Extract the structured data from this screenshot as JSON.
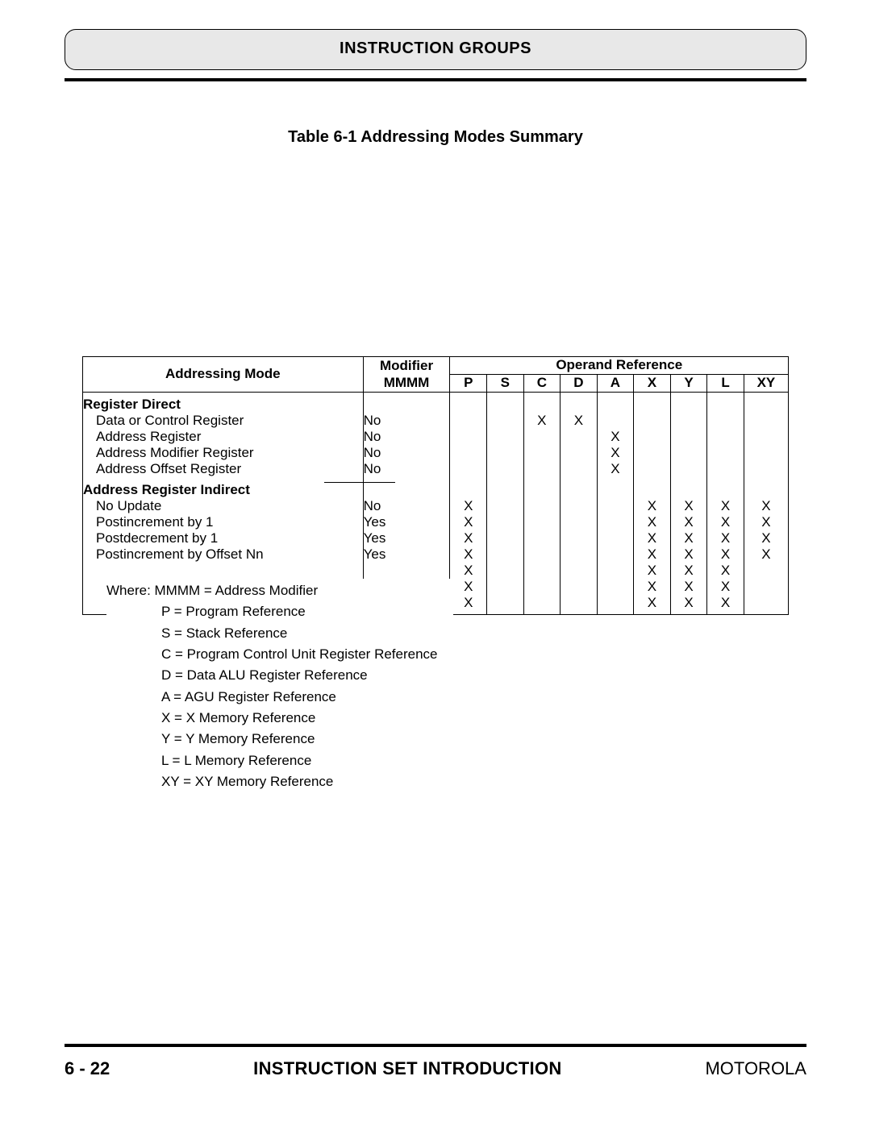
{
  "header": {
    "title": "INSTRUCTION GROUPS"
  },
  "caption": "Table 6-1 Addressing Modes Summary",
  "table": {
    "headers": {
      "mode": "Addressing Mode",
      "modifier_line1": "Modifier",
      "modifier_line2": "MMMM",
      "operand_reference": "Operand Reference",
      "cols": [
        "P",
        "S",
        "C",
        "D",
        "A",
        "X",
        "Y",
        "L",
        "XY"
      ]
    },
    "sections": [
      {
        "title": "Register Direct",
        "rows": [
          {
            "label": "Data or Control Register",
            "mod": "No",
            "marks": {
              "C": "X",
              "D": "X"
            }
          },
          {
            "label": "Address Register",
            "mod": "No",
            "marks": {
              "A": "X"
            }
          },
          {
            "label": "Address Modifier Register",
            "mod": "No",
            "marks": {
              "A": "X"
            }
          },
          {
            "label": "Address Offset Register",
            "mod": "No",
            "marks": {
              "A": "X"
            }
          }
        ]
      },
      {
        "title": "Address Register Indirect",
        "rows": [
          {
            "label": "No Update",
            "mod": "No",
            "marks": {
              "P": "X",
              "X": "X",
              "Y": "X",
              "L": "X",
              "XY": "X"
            }
          },
          {
            "label": "Postincrement by 1",
            "mod": "Yes",
            "marks": {
              "P": "X",
              "X": "X",
              "Y": "X",
              "L": "X",
              "XY": "X"
            }
          },
          {
            "label": "Postdecrement by 1",
            "mod": "Yes",
            "marks": {
              "P": "X",
              "X": "X",
              "Y": "X",
              "L": "X",
              "XY": "X"
            }
          },
          {
            "label": "Postincrement by Offset Nn",
            "mod": "Yes",
            "marks": {
              "P": "X",
              "X": "X",
              "Y": "X",
              "L": "X",
              "XY": "X"
            }
          },
          {
            "label": "",
            "mod": "",
            "marks": {
              "P": "X",
              "X": "X",
              "Y": "X",
              "L": "X"
            }
          },
          {
            "label": "",
            "mod": "",
            "marks": {
              "P": "X",
              "X": "X",
              "Y": "X",
              "L": "X"
            }
          },
          {
            "label": "",
            "mod": "",
            "marks": {
              "P": "X",
              "X": "X",
              "Y": "X",
              "L": "X"
            }
          }
        ]
      }
    ]
  },
  "legend": {
    "first": "Where: MMMM = Address Modifier",
    "items": [
      "P = Program Reference",
      "S = Stack Reference",
      "C = Program Control Unit Register Reference",
      "D = Data ALU Register Reference",
      "A = AGU Register Reference",
      "X = X Memory Reference",
      "Y = Y Memory Reference",
      "L = L Memory Reference",
      "XY = XY Memory Reference"
    ]
  },
  "footer": {
    "left": "6 - 22",
    "center": "INSTRUCTION SET INTRODUCTION",
    "right": "MOTOROLA"
  },
  "style": {
    "page_bg": "#ffffff",
    "header_bg": "#e8e8e8",
    "text_color": "#000000",
    "rule_thickness": 4
  }
}
